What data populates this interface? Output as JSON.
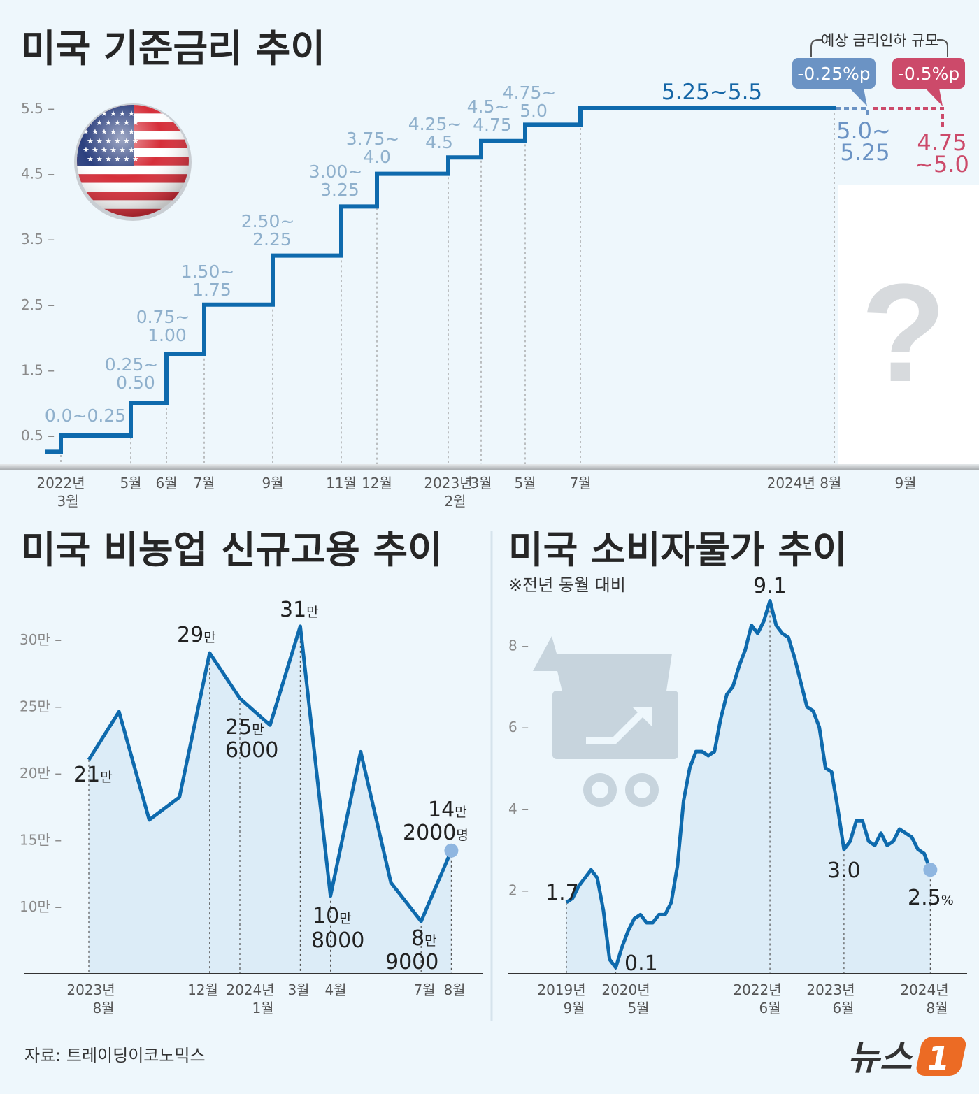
{
  "titles": {
    "rate": "미국 기준금리 추이",
    "jobs": "미국 비농업 신규고용 추이",
    "cpi": "미국 소비자물가 추이",
    "cpi_note": "※전년 동월 대비"
  },
  "source": "자료: 트레이딩이코노믹스",
  "logo": "뉴스1",
  "colors": {
    "line": "#0e6aad",
    "label": "#8fb0cc",
    "cut_025": "#6b93c4",
    "cut_05": "#cc4a6a",
    "fill": "#dcecf7"
  },
  "icons": [
    "us-flag-icon",
    "question-mark-icon",
    "gear-icon",
    "shopping-cart-icon"
  ],
  "chart_data": [
    {
      "type": "line",
      "subtype": "step",
      "title": "미국 기준금리 추이",
      "yticks": [
        "5.5",
        "4.5",
        "3.5",
        "2.5",
        "1.5",
        "0.5"
      ],
      "ylim": [
        0,
        5.5
      ],
      "x_labels": [
        [
          "2022년",
          "3월"
        ],
        [
          "5월"
        ],
        [
          "6월"
        ],
        [
          "7월"
        ],
        [
          "9월"
        ],
        [
          "11월"
        ],
        [
          "12월"
        ],
        [
          "2023년",
          "2월"
        ],
        [
          "3월"
        ],
        [
          "5월"
        ],
        [
          "7월"
        ],
        [
          "2024년 8월"
        ],
        [
          "9월"
        ]
      ],
      "steps": [
        {
          "date": "2022-03",
          "low": 0.25,
          "high": 0.5,
          "label": [
            "0.0~0.25"
          ]
        },
        {
          "date": "2022-05",
          "low": 0.75,
          "high": 1.0,
          "label": [
            "0.25~",
            "0.50"
          ]
        },
        {
          "date": "2022-06",
          "low": 1.5,
          "high": 1.75,
          "label": [
            "0.75~",
            "1.00"
          ]
        },
        {
          "date": "2022-07",
          "low": 2.25,
          "high": 2.5,
          "label": [
            "1.50~",
            "1.75"
          ]
        },
        {
          "date": "2022-09",
          "low": 3.0,
          "high": 3.25,
          "label": [
            "2.50~",
            "2.25"
          ]
        },
        {
          "date": "2022-11",
          "low": 3.75,
          "high": 4.0,
          "label": [
            "3.00~",
            "3.25"
          ]
        },
        {
          "date": "2022-12",
          "low": 4.25,
          "high": 4.5,
          "label": [
            "3.75~",
            "4.0"
          ]
        },
        {
          "date": "2023-02",
          "low": 4.5,
          "high": 4.75,
          "label": [
            "4.25~",
            "4.5"
          ]
        },
        {
          "date": "2023-03",
          "low": 4.75,
          "high": 5.0,
          "label": [
            "4.5~",
            "4.75"
          ]
        },
        {
          "date": "2023-05",
          "low": 5.0,
          "high": 5.25,
          "label": [
            "4.75~",
            "5.0"
          ]
        },
        {
          "date": "2023-07",
          "low": 5.25,
          "high": 5.5,
          "label": [
            "5.25~5.5"
          ]
        }
      ],
      "initial": {
        "low": 0.0,
        "high": 0.25
      },
      "forecast": {
        "heading": "예상 금리인하 규모",
        "scenarios": [
          {
            "cut": "-0.25%p",
            "result": [
              "5.0~",
              "5.25"
            ],
            "high": 5.25
          },
          {
            "cut": "-0.5%p",
            "result": [
              "4.75",
              "~5.0"
            ],
            "high": 5.0
          }
        ]
      }
    },
    {
      "type": "area",
      "title": "미국 비농업 신규고용 추이",
      "unit": "만",
      "yticks": [
        "30만",
        "25만",
        "20만",
        "15만",
        "10만"
      ],
      "ylim": [
        5,
        32
      ],
      "x": [
        "2023-08",
        "2023-09",
        "2023-10",
        "2023-11",
        "2023-12",
        "2024-01",
        "2024-02",
        "2024-03",
        "2024-04",
        "2024-05",
        "2024-06",
        "2024-07",
        "2024-08"
      ],
      "values": [
        21,
        24.6,
        16.5,
        18.2,
        29,
        25.6,
        23.6,
        31,
        10.8,
        21.6,
        11.8,
        8.9,
        14.2
      ],
      "x_labels": [
        [
          "2023년",
          "8월"
        ],
        [
          "12월"
        ],
        [
          "2024년",
          "1월"
        ],
        [
          "3월"
        ],
        [
          "4월"
        ],
        [
          "7월"
        ],
        [
          "8월"
        ]
      ],
      "annotations": [
        {
          "month": "2023-08",
          "lines": [
            [
              "21",
              "만"
            ]
          ]
        },
        {
          "month": "2023-12",
          "lines": [
            [
              "29",
              "만"
            ]
          ]
        },
        {
          "month": "2024-01",
          "lines": [
            [
              "25",
              "만"
            ],
            [
              "6000",
              ""
            ]
          ]
        },
        {
          "month": "2024-03",
          "lines": [
            [
              "31",
              "만"
            ]
          ]
        },
        {
          "month": "2024-04",
          "lines": [
            [
              "10",
              "만"
            ],
            [
              "8000",
              ""
            ]
          ]
        },
        {
          "month": "2024-07",
          "lines": [
            [
              "8",
              "만"
            ],
            [
              "9000",
              ""
            ]
          ]
        },
        {
          "month": "2024-08",
          "lines": [
            [
              "14",
              "만"
            ],
            [
              "2000",
              "명"
            ]
          ]
        }
      ]
    },
    {
      "type": "area",
      "title": "미국 소비자물가 추이",
      "yticks": [
        "8",
        "6",
        "4",
        "2"
      ],
      "ylim": [
        0,
        9.5
      ],
      "x_start": "2019-09",
      "x_end": "2024-08",
      "values": [
        1.7,
        1.8,
        2.1,
        2.3,
        2.5,
        2.3,
        1.5,
        0.3,
        0.1,
        0.6,
        1.0,
        1.3,
        1.4,
        1.2,
        1.2,
        1.4,
        1.4,
        1.7,
        2.6,
        4.2,
        5.0,
        5.4,
        5.4,
        5.3,
        5.4,
        6.2,
        6.8,
        7.0,
        7.5,
        7.9,
        8.5,
        8.3,
        8.6,
        9.1,
        8.5,
        8.3,
        8.2,
        7.7,
        7.1,
        6.5,
        6.4,
        6.0,
        5.0,
        4.9,
        4.0,
        3.0,
        3.2,
        3.7,
        3.7,
        3.2,
        3.1,
        3.4,
        3.1,
        3.2,
        3.5,
        3.4,
        3.3,
        3.0,
        2.9,
        2.5
      ],
      "x_labels": [
        [
          "2019년",
          "9월"
        ],
        [
          "2020년",
          "5월"
        ],
        [
          "2022년",
          "6월"
        ],
        [
          "2023년",
          "6월"
        ],
        [
          "2024년",
          "8월"
        ]
      ],
      "annotations": [
        {
          "month": "2019-09",
          "text": "1.7",
          "unit": ""
        },
        {
          "month": "2020-05",
          "text": "0.1",
          "unit": ""
        },
        {
          "month": "2022-06",
          "text": "9.1",
          "unit": ""
        },
        {
          "month": "2023-06",
          "text": "3.0",
          "unit": ""
        },
        {
          "month": "2024-08",
          "text": "2.5",
          "unit": "%"
        }
      ]
    }
  ]
}
